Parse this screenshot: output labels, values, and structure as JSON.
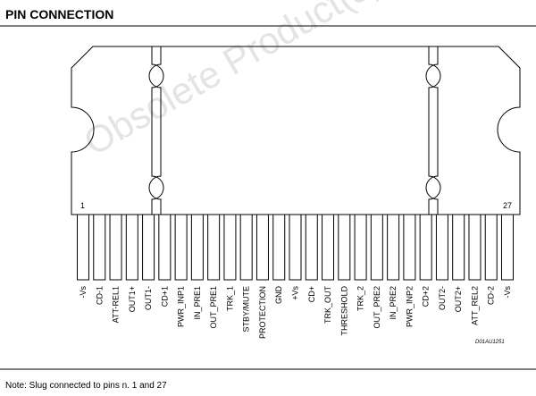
{
  "header": {
    "title": "PIN CONNECTION"
  },
  "watermark": "Obsolete Product(s)",
  "package": {
    "first_pin_number": "1",
    "last_pin_number": "27",
    "drawing_code": "D01AU1251"
  },
  "pins": [
    "-Vs",
    "CD-1",
    "ATT-REL1",
    "OUT1+",
    "OUT1-",
    "CD+1",
    "PWR_INP1",
    "IN_PRE1",
    "OUT_PRE1",
    "TRK_1",
    "STBY/MUTE",
    "PROTECTION",
    "GND",
    "+Vs",
    "CD+",
    "TRK_OUT",
    "THRESHOLD",
    "TRK_2",
    "OUT_PRE2",
    "IN_PRE2",
    "PWR_INP2",
    "CD+2",
    "OUT2-",
    "OUT2+",
    "ATT_REL2",
    "CD-2",
    "-Vs"
  ],
  "note": "Note: Slug connected to pins n. 1 and 27"
}
